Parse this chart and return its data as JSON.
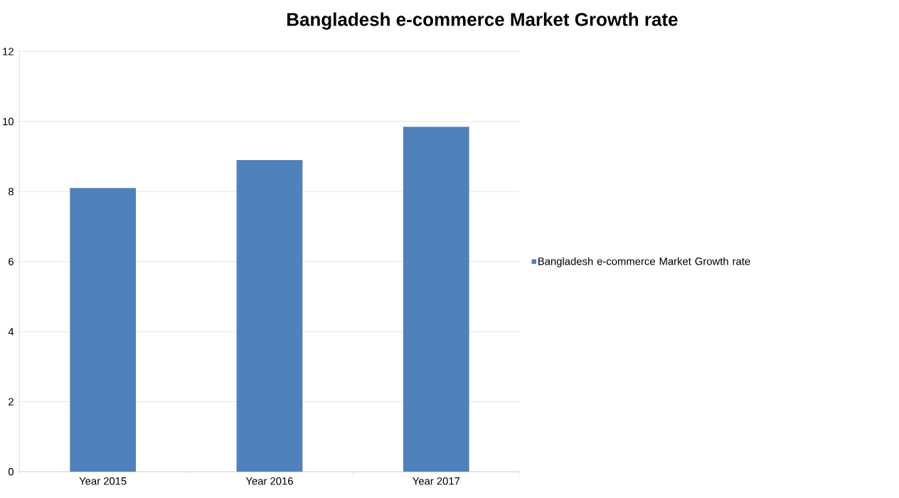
{
  "chart_data": {
    "type": "bar",
    "title": "Bangladesh e-commerce Market Growth rate",
    "categories": [
      "Year 2015",
      "Year 2016",
      "Year 2017"
    ],
    "series": [
      {
        "name": "Bangladesh e-commerce Market Growth rate",
        "color": "#4f81bd",
        "values": [
          8.1,
          8.9,
          9.85
        ]
      }
    ],
    "ylim": [
      0,
      12
    ],
    "yticks": [
      0,
      2,
      4,
      6,
      8,
      10,
      12
    ],
    "grid": "y",
    "legend": "right"
  }
}
